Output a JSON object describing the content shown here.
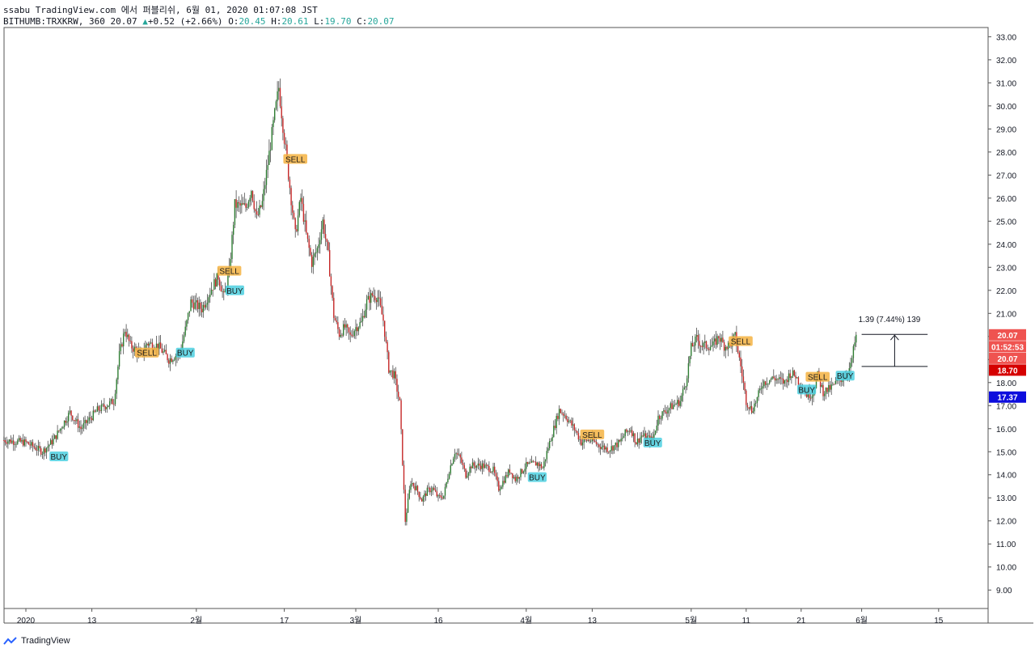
{
  "header": {
    "line1": "ssabu TradingView.com 에서 퍼블리쉬, 6월 01, 2020 01:07:08 JST",
    "symbol": "BITHUMB:TRXKRW, 360",
    "last": "20.07",
    "change": "+0.52 (+2.66%)",
    "o_label": "O:",
    "o": "20.45",
    "h_label": "H:",
    "h": "20.61",
    "l_label": "L:",
    "l": "19.70",
    "c_label": "C:",
    "c": "20.07"
  },
  "footer": {
    "brand": "TradingView"
  },
  "chart_data": {
    "type": "candlestick",
    "y_ticks": [
      "33.00",
      "32.00",
      "31.00",
      "30.00",
      "29.00",
      "28.00",
      "27.00",
      "26.00",
      "25.00",
      "24.00",
      "23.00",
      "22.00",
      "21.00",
      "20.00",
      "19.00",
      "18.00",
      "17.00",
      "16.00",
      "15.00",
      "14.00",
      "13.00",
      "12.00",
      "11.00",
      "10.00",
      "9.00"
    ],
    "ylim": [
      8.2,
      33.4
    ],
    "x_ticks": [
      {
        "label": "2020",
        "day": 0
      },
      {
        "label": "13",
        "day": 12
      },
      {
        "label": "2월",
        "day": 31
      },
      {
        "label": "17",
        "day": 47
      },
      {
        "label": "3월",
        "day": 60
      },
      {
        "label": "16",
        "day": 75
      },
      {
        "label": "4월",
        "day": 91
      },
      {
        "label": "13",
        "day": 103
      },
      {
        "label": "5월",
        "day": 121
      },
      {
        "label": "11",
        "day": 131
      },
      {
        "label": "21",
        "day": 141
      },
      {
        "label": "6월",
        "day": 152
      },
      {
        "label": "15",
        "day": 166
      }
    ],
    "close_path": [
      [
        -4,
        15.5
      ],
      [
        0,
        15.4
      ],
      [
        3,
        15.0
      ],
      [
        5,
        15.5
      ],
      [
        8,
        16.7
      ],
      [
        10,
        16.0
      ],
      [
        13,
        16.8
      ],
      [
        16,
        17.2
      ],
      [
        17,
        19.2
      ],
      [
        18,
        20.3
      ],
      [
        19,
        19.6
      ],
      [
        21,
        19.2
      ],
      [
        22,
        19.7
      ],
      [
        24,
        19.6
      ],
      [
        26,
        19.0
      ],
      [
        28,
        19.3
      ],
      [
        29,
        20.3
      ],
      [
        30,
        21.5
      ],
      [
        32,
        21.2
      ],
      [
        34,
        22.2
      ],
      [
        35,
        22.6
      ],
      [
        36,
        21.7
      ],
      [
        37,
        22.8
      ],
      [
        38,
        25.7
      ],
      [
        40,
        25.6
      ],
      [
        41,
        26.4
      ],
      [
        42,
        25.1
      ],
      [
        43,
        25.8
      ],
      [
        45,
        29.2
      ],
      [
        46,
        30.8
      ],
      [
        47,
        28.6
      ],
      [
        48,
        26.5
      ],
      [
        49,
        24.4
      ],
      [
        50,
        26.0
      ],
      [
        51,
        24.4
      ],
      [
        52,
        23.2
      ],
      [
        53,
        23.8
      ],
      [
        54,
        25.0
      ],
      [
        55,
        23.5
      ],
      [
        56,
        20.9
      ],
      [
        57,
        20.1
      ],
      [
        58,
        20.4
      ],
      [
        59,
        20.0
      ],
      [
        60,
        20.4
      ],
      [
        61,
        20.6
      ],
      [
        62,
        21.5
      ],
      [
        63,
        21.8
      ],
      [
        64,
        21.7
      ],
      [
        65,
        20.7
      ],
      [
        66,
        18.6
      ],
      [
        67,
        18.3
      ],
      [
        68,
        17.1
      ],
      [
        69,
        12.0
      ],
      [
        70,
        13.7
      ],
      [
        71,
        13.4
      ],
      [
        72,
        12.9
      ],
      [
        73,
        13.3
      ],
      [
        74,
        13.4
      ],
      [
        75,
        13.0
      ],
      [
        76,
        13.1
      ],
      [
        77,
        14.2
      ],
      [
        78,
        15.0
      ],
      [
        79,
        14.7
      ],
      [
        80,
        14.0
      ],
      [
        81,
        14.4
      ],
      [
        83,
        14.4
      ],
      [
        85,
        14.2
      ],
      [
        86,
        13.4
      ],
      [
        88,
        14.2
      ],
      [
        89,
        13.8
      ],
      [
        91,
        14.4
      ],
      [
        93,
        14.5
      ],
      [
        94,
        14.3
      ],
      [
        95,
        15.2
      ],
      [
        96,
        16.0
      ],
      [
        97,
        16.8
      ],
      [
        98,
        16.6
      ],
      [
        100,
        15.9
      ],
      [
        101,
        15.4
      ],
      [
        102,
        15.5
      ],
      [
        103,
        15.5
      ],
      [
        104,
        15.3
      ],
      [
        106,
        15.1
      ],
      [
        108,
        15.4
      ],
      [
        109,
        15.8
      ],
      [
        110,
        16.0
      ],
      [
        111,
        15.4
      ],
      [
        112,
        15.7
      ],
      [
        114,
        15.5
      ],
      [
        115,
        16.5
      ],
      [
        117,
        16.9
      ],
      [
        119,
        17.2
      ],
      [
        120,
        18.0
      ],
      [
        121,
        19.5
      ],
      [
        122,
        19.9
      ],
      [
        123,
        19.6
      ],
      [
        125,
        19.6
      ],
      [
        126,
        20.0
      ],
      [
        127,
        19.6
      ],
      [
        128,
        19.6
      ],
      [
        129,
        20.0
      ],
      [
        130,
        18.7
      ],
      [
        131,
        17.2
      ],
      [
        132,
        16.8
      ],
      [
        133,
        17.3
      ],
      [
        134,
        18.0
      ],
      [
        136,
        18.2
      ],
      [
        138,
        18.0
      ],
      [
        139,
        18.4
      ],
      [
        140,
        18.3
      ],
      [
        141,
        17.8
      ],
      [
        142,
        17.5
      ],
      [
        143,
        17.5
      ],
      [
        144,
        18.3
      ],
      [
        145,
        17.6
      ],
      [
        146,
        17.7
      ],
      [
        147,
        17.9
      ],
      [
        148,
        18.1
      ],
      [
        149,
        18.3
      ],
      [
        150,
        18.7
      ],
      [
        151,
        20.07
      ]
    ],
    "signals": [
      {
        "label": "BUY",
        "day": 6,
        "price": 14.8,
        "color": "#4dd0e1"
      },
      {
        "label": "SELL",
        "day": 22,
        "price": 19.3,
        "color": "#f5b342"
      },
      {
        "label": "BUY",
        "day": 29,
        "price": 19.3,
        "color": "#4dd0e1"
      },
      {
        "label": "SELL",
        "day": 37,
        "price": 22.85,
        "color": "#f5b342"
      },
      {
        "label": "BUY",
        "day": 38,
        "price": 22.0,
        "color": "#4dd0e1"
      },
      {
        "label": "SELL",
        "day": 49,
        "price": 27.7,
        "color": "#f5b342"
      },
      {
        "label": "BUY",
        "day": 93,
        "price": 13.9,
        "color": "#4dd0e1"
      },
      {
        "label": "SELL",
        "day": 103,
        "price": 15.75,
        "color": "#f5b342"
      },
      {
        "label": "BUY",
        "day": 114,
        "price": 15.4,
        "color": "#4dd0e1"
      },
      {
        "label": "SELL",
        "day": 130,
        "price": 19.8,
        "color": "#f5b342"
      },
      {
        "label": "BUY",
        "day": 142,
        "price": 17.7,
        "color": "#4dd0e1"
      },
      {
        "label": "SELL",
        "day": 144,
        "price": 18.25,
        "color": "#f5b342"
      },
      {
        "label": "BUY",
        "day": 149,
        "price": 18.3,
        "color": "#4dd0e1"
      }
    ],
    "price_labels": [
      {
        "text": "20.07",
        "price": 20.07,
        "bg": "#ef5350",
        "fg": "#ffffff"
      },
      {
        "text": "01:52:53",
        "price": 19.56,
        "bg": "#ef5350",
        "fg": "#ffffff"
      },
      {
        "text": "20.07",
        "price": 19.05,
        "bg": "#ef5350",
        "fg": "#ffffff"
      },
      {
        "text": "18.70",
        "price": 18.54,
        "bg": "#d50000",
        "fg": "#ffffff"
      },
      {
        "text": "17.37",
        "price": 17.37,
        "bg": "#0d0ddd",
        "fg": "#ffffff"
      }
    ],
    "measure": {
      "text": "1.39 (7.44%) 139",
      "from": 18.7,
      "to": 20.09,
      "day_start": 152,
      "day_end": 164
    },
    "colors": {
      "up": "#26a69a",
      "down": "#ef5350",
      "grid": "#e6e6e6",
      "text": "#131722"
    }
  }
}
